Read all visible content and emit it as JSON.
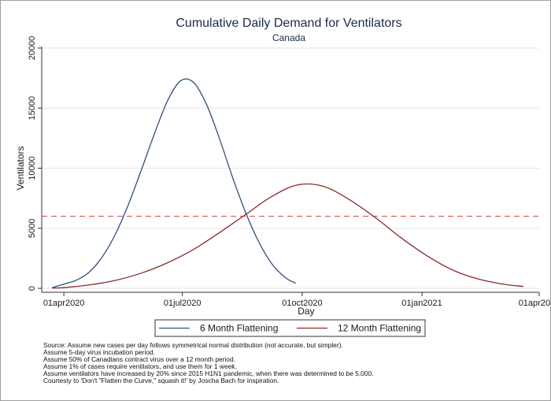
{
  "chart_data": {
    "type": "line",
    "title": "Cumulative Daily Demand for Ventilators",
    "subtitle": "Canada",
    "xlabel": "Day",
    "ylabel": "Ventilators",
    "x_ticks": [
      "01apr2020",
      "01jul2020",
      "01oct2020",
      "01jan2021",
      "01apr2021"
    ],
    "x_range": [
      "2020-03-15",
      "2021-04-01"
    ],
    "y_ticks": [
      0,
      5000,
      10000,
      15000,
      20000
    ],
    "ylim": [
      0,
      20000
    ],
    "grid": true,
    "legend_position": "bottom",
    "series": [
      {
        "name": "6 Month Flattening",
        "color": "#2f4f7f",
        "x": [
          "2020-03-23",
          "2020-04-01",
          "2020-04-11",
          "2020-04-21",
          "2020-05-01",
          "2020-05-11",
          "2020-05-21",
          "2020-05-31",
          "2020-06-10",
          "2020-06-20",
          "2020-06-30",
          "2020-07-10",
          "2020-07-20",
          "2020-07-30",
          "2020-08-09",
          "2020-08-19",
          "2020-08-29",
          "2020-09-08",
          "2020-09-18",
          "2020-09-26"
        ],
        "y": [
          60,
          350,
          700,
          1400,
          2700,
          4600,
          7100,
          10000,
          13000,
          15700,
          17300,
          17100,
          15200,
          12300,
          9100,
          6200,
          3800,
          2000,
          900,
          420
        ]
      },
      {
        "name": "12 Month Flattening",
        "color": "#8b2b2b",
        "x": [
          "2020-03-23",
          "2020-04-01",
          "2020-04-20",
          "2020-05-10",
          "2020-05-30",
          "2020-06-19",
          "2020-07-09",
          "2020-07-29",
          "2020-08-18",
          "2020-09-07",
          "2020-09-27",
          "2020-10-17",
          "2020-11-06",
          "2020-11-26",
          "2020-12-16",
          "2021-01-05",
          "2021-01-25",
          "2021-02-14",
          "2021-03-06",
          "2021-03-20"
        ],
        "y": [
          20,
          60,
          280,
          650,
          1250,
          2100,
          3200,
          4600,
          6100,
          7600,
          8600,
          8500,
          7400,
          5900,
          4200,
          2700,
          1500,
          750,
          320,
          160
        ]
      }
    ],
    "reference_lines": [
      {
        "y": 6000,
        "color": "#e06060",
        "style": "dashed"
      }
    ]
  },
  "notes": [
    "Source: Assume new cases per day follows symmetrical normal distribution (not accurate, but simpler).",
    "Assume 5-day virus incubation period.",
    "Assume 50% of Canadians contract virus over a 12 month period.",
    "Assume 1% of cases require ventilators, and use them for 1 week.",
    "Assume ventilators have increased by 20% since 2015 H1N1 pandemic, when there was determined to be 5,000.",
    "Courtesty to 'Don't \"Flatten the Curve,\" squash it!' by Joscha Bach for inspiration."
  ]
}
